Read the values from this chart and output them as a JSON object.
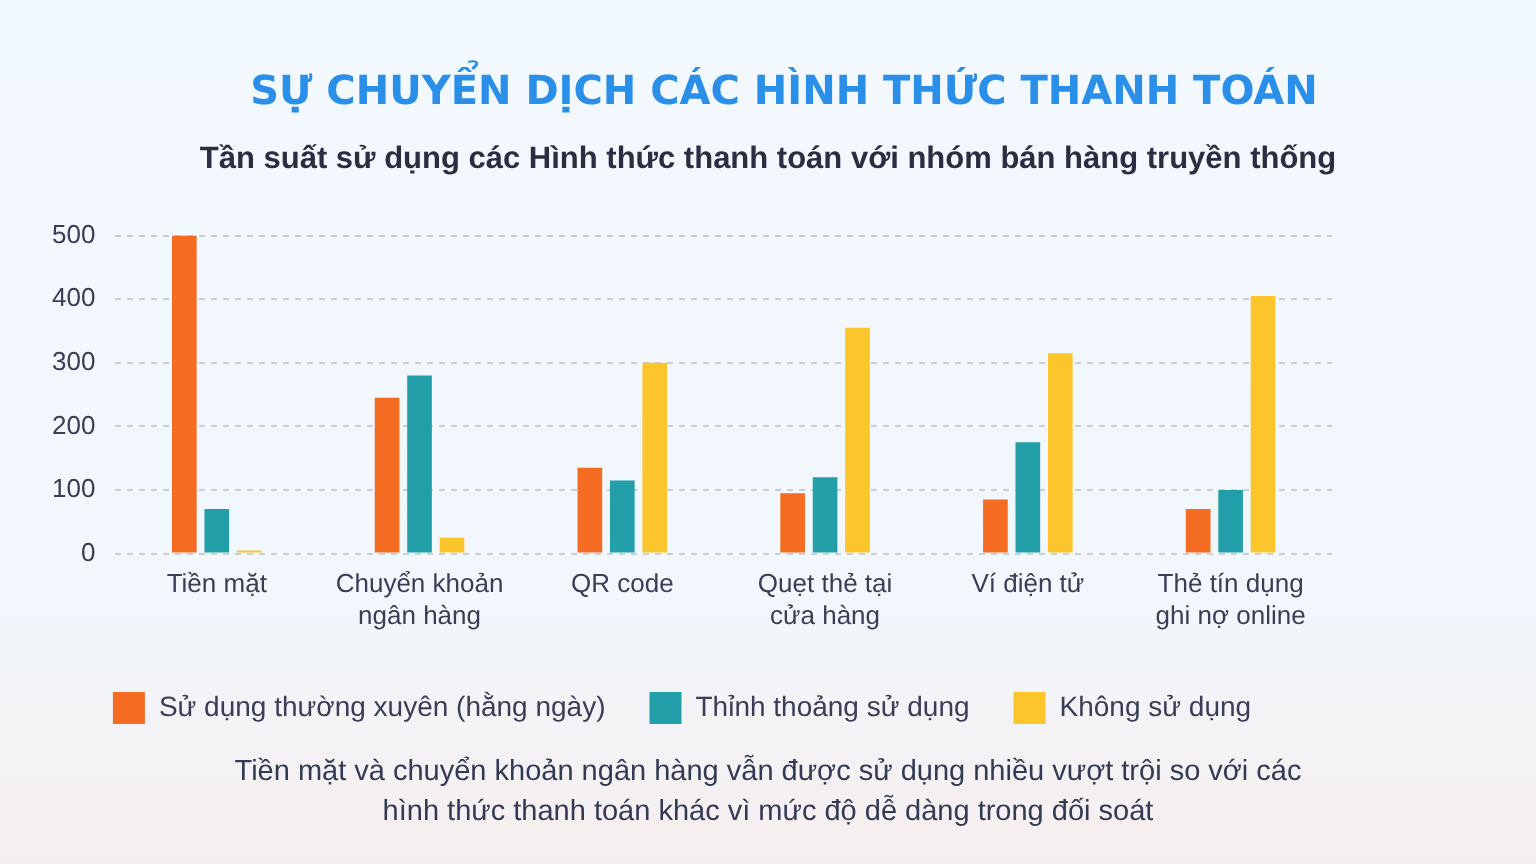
{
  "chart_data": {
    "type": "bar",
    "title": "SỰ CHUYỂN DỊCH CÁC HÌNH THỨC THANH TOÁN",
    "subtitle": "Tần suất sử dụng các Hình thức thanh toán với nhóm bán hàng truyền thống",
    "categories": [
      "Tiền mặt",
      "Chuyển khoản ngân hàng",
      "QR code",
      "Quẹt thẻ tại cửa hàng",
      "Ví điện tử",
      "Thẻ tín dụng ghi nợ online"
    ],
    "series": [
      {
        "name": "Sử dụng thường xuyên (hằng ngày)",
        "color": "#f46b22",
        "values": [
          500,
          245,
          135,
          95,
          85,
          70
        ]
      },
      {
        "name": "Thỉnh thoảng sử dụng",
        "color": "#229fa8",
        "values": [
          70,
          280,
          115,
          120,
          175,
          100
        ]
      },
      {
        "name": "Không sử dụng",
        "color": "#fdc52c",
        "values": [
          5,
          25,
          300,
          355,
          315,
          405
        ]
      }
    ],
    "ylim": [
      0,
      500
    ],
    "yticks": [
      0,
      100,
      200,
      300,
      400,
      500
    ],
    "grid": "y",
    "legend": "bottom",
    "annotations": [
      "Tiền mặt và chuyển khoản ngân hàng vẫn được sử dụng nhiều vượt trội so với các hình thức thanh toán khác vì mức độ dễ dàng trong đối soát"
    ]
  }
}
